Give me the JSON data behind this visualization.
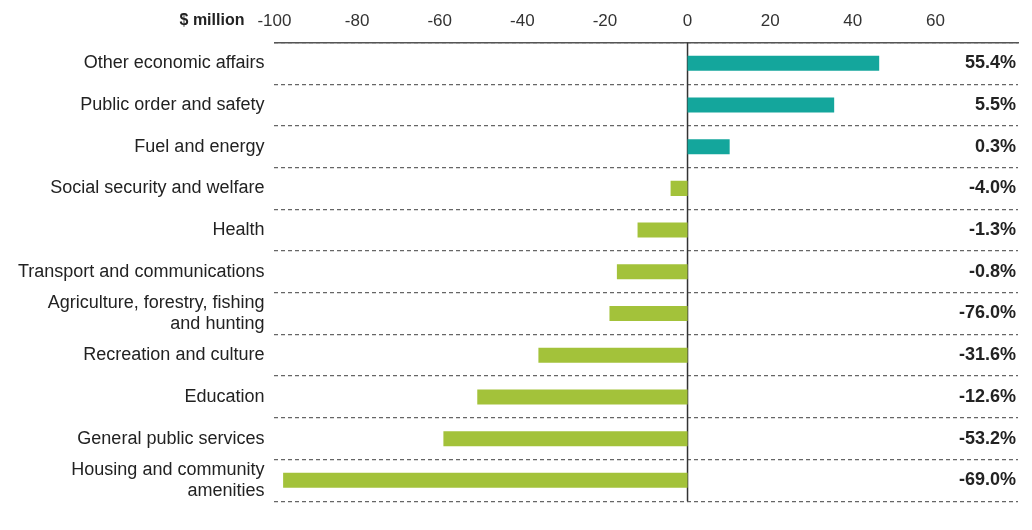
{
  "chart_data": {
    "type": "bar",
    "orientation": "horizontal",
    "xlabel": "$ million",
    "categories": [
      "Other economic affairs",
      "Public order and safety",
      "Fuel and energy",
      "Social security and welfare",
      "Health",
      "Transport and communications",
      "Agriculture, forestry, fishing and hunting",
      "Recreation and culture",
      "Education",
      "General public services",
      "Housing and community amenities"
    ],
    "values": [
      46.4,
      35.5,
      10.2,
      -4.1,
      -12.1,
      -17.1,
      -18.9,
      -36.1,
      -50.9,
      -59.1,
      -97.9
    ],
    "colors": [
      "#14a69c",
      "#14a69c",
      "#14a69c",
      "#a3c23a",
      "#a3c23a",
      "#a3c23a",
      "#a3c23a",
      "#a3c23a",
      "#a3c23a",
      "#a3c23a",
      "#a3c23a"
    ],
    "xlim": [
      -100,
      80
    ],
    "xticks": [
      -100,
      -80,
      -60,
      -40,
      -20,
      0,
      20,
      40,
      60
    ],
    "grid": "y",
    "legend": false,
    "annotations": [
      "55.4%",
      "5.5%",
      "0.3%",
      "-4.0%",
      "-1.3%",
      "-0.8%",
      "-76.0%",
      "-31.6%",
      "-12.6%",
      "-53.2%",
      "-69.0%"
    ]
  }
}
